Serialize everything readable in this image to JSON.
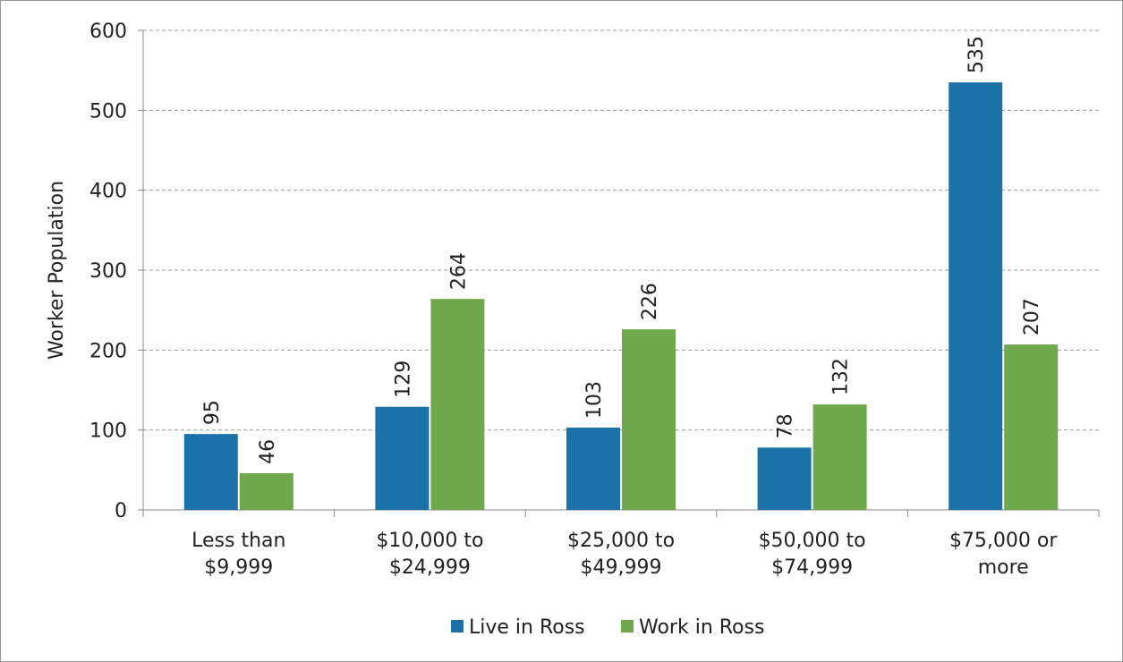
{
  "chart_data": {
    "type": "bar",
    "categories": [
      "Less than $9,999",
      "$10,000 to $24,999",
      "$25,000 to $49,999",
      "$50,000 to $74,999",
      "$75,000 or more"
    ],
    "series": [
      {
        "name": "Live in Ross",
        "color": "#1a72a8",
        "values": [
          95,
          129,
          103,
          78,
          535
        ]
      },
      {
        "name": "Work in Ross",
        "color": "#70a84e",
        "values": [
          46,
          264,
          226,
          132,
          207
        ]
      }
    ],
    "ylabel": "Worker Population",
    "ylim": [
      0,
      600
    ],
    "yticks": [
      0,
      100,
      200,
      300,
      400,
      500,
      600
    ],
    "grid": true,
    "legend": "bottom"
  }
}
